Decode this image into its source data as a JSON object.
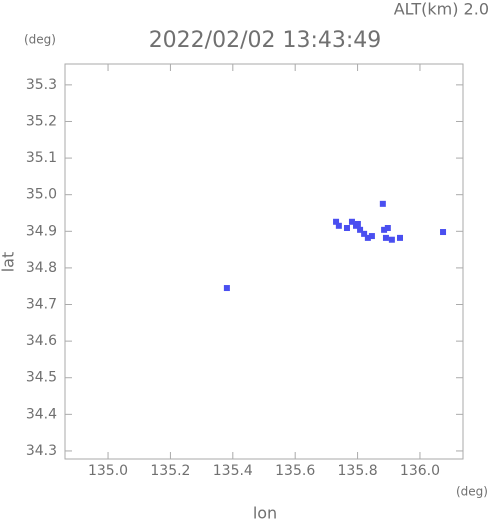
{
  "chart_data": {
    "type": "scatter",
    "title": "2022/02/02 13:43:49",
    "subtitle": "ALT(km) 2.0",
    "y_unit": "(deg)",
    "x_unit": "(deg)",
    "x_label": "lon",
    "y_label": "lat",
    "color": "#4a4ff0",
    "xlim": [
      134.862,
      136.138
    ],
    "ylim": [
      34.278,
      35.357
    ],
    "xticks": [
      {
        "value": 135.0,
        "label": "135.0"
      },
      135.2,
      135.4,
      135.6,
      135.8,
      {
        "value": 136.0,
        "label": "136.0"
      }
    ],
    "yticks": [
      34.3,
      34.4,
      34.5,
      34.6,
      34.7,
      34.8,
      34.9,
      {
        "value": 35.0,
        "label": "35.0"
      },
      35.1,
      35.2,
      35.3
    ],
    "x": [
      135.731,
      135.74,
      135.766,
      135.782,
      135.795,
      135.808,
      135.821,
      135.833,
      135.846,
      135.801,
      135.881,
      135.885,
      135.897,
      135.891,
      135.91,
      135.936,
      136.074,
      135.381
    ],
    "values": [
      34.926,
      34.915,
      34.909,
      34.926,
      34.915,
      34.904,
      34.893,
      34.882,
      34.887,
      34.92,
      34.975,
      34.904,
      34.909,
      34.882,
      34.877,
      34.882,
      34.898,
      34.745
    ]
  }
}
